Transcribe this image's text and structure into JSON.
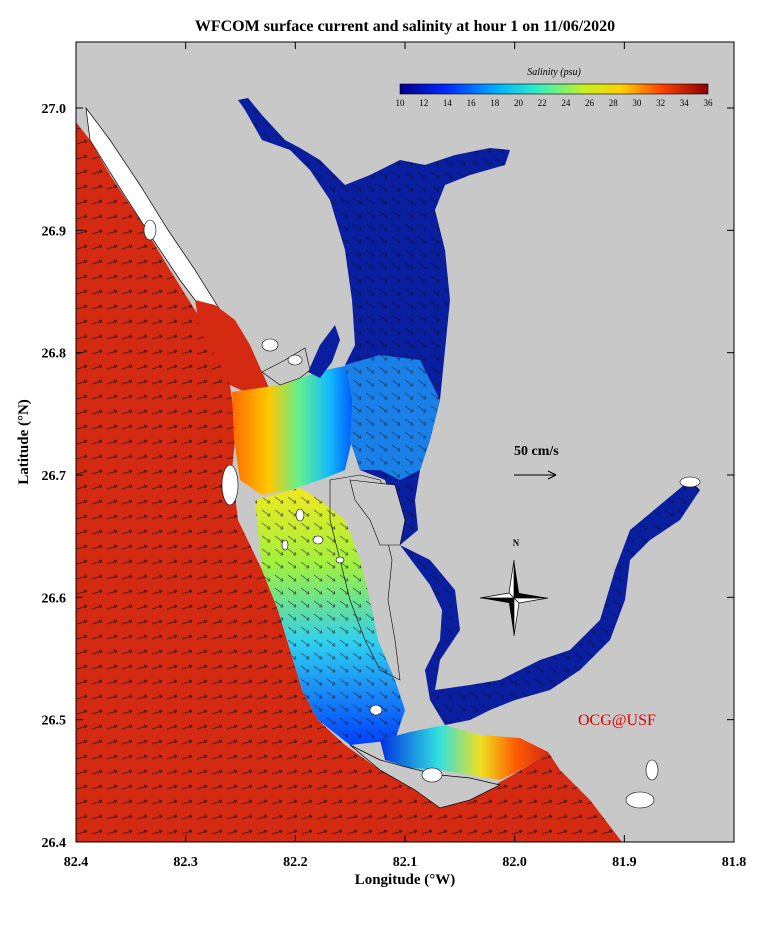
{
  "title": "WFCOM surface current and salinity at hour 1 on 11/06/2020",
  "x_axis": {
    "label": "Longitude (°W)",
    "ticks": [
      "82.4",
      "82.3",
      "82.2",
      "82.1",
      "82.0",
      "81.9",
      "81.8"
    ],
    "range": [
      82.4,
      81.8
    ]
  },
  "y_axis": {
    "label": "Latitude (°N)",
    "ticks": [
      "27.0",
      "26.9",
      "26.8",
      "26.7",
      "26.6",
      "26.5",
      "26.4"
    ],
    "range": [
      26.4,
      27.05
    ]
  },
  "colorbar": {
    "label": "Salinity (psu)",
    "ticks": [
      "10",
      "12",
      "14",
      "16",
      "18",
      "20",
      "22",
      "24",
      "26",
      "28",
      "30",
      "32",
      "34",
      "36"
    ],
    "range": [
      10,
      36
    ]
  },
  "scale_arrow_label": "50 cm/s",
  "compass_label": "N",
  "credit": "OCG@USF",
  "colors": {
    "land": "#c8c8c8",
    "gulf": "#d42a12",
    "fresh": "#0a1ea0",
    "credit": "#e00000"
  }
}
